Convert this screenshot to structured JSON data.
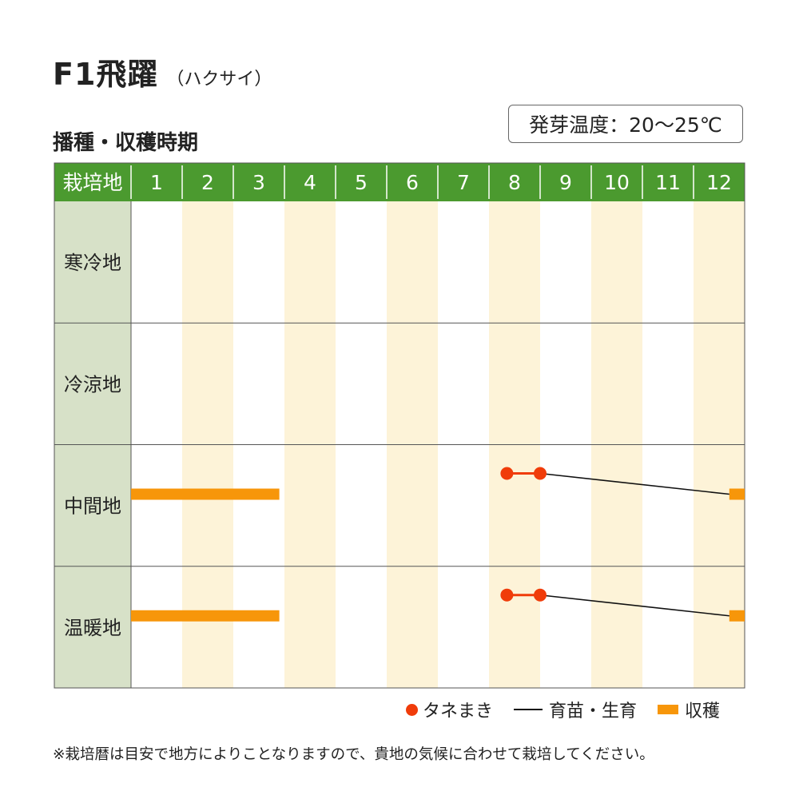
{
  "title": {
    "main": "F1飛躍",
    "sub": "（ハクサイ）"
  },
  "section_title": "播種・収穫時期",
  "germination": "発芽温度：20〜25℃",
  "legend": {
    "sowing": "タネまき",
    "growing": "育苗・生育",
    "harvest": "収穫"
  },
  "note": "※栽培暦は目安で地方によりことなりますので、貴地の気候に合わせて栽培してください。",
  "colors": {
    "header": "#4b9a2f",
    "rowLabel": "#d7e1c8",
    "stripe": "#fdf3d8",
    "sowing": "#f03c0a",
    "harvest": "#f7960a",
    "growing": "#111111"
  },
  "chart_data": {
    "type": "gantt",
    "header_label": "栽培地",
    "months": [
      "1",
      "2",
      "3",
      "4",
      "5",
      "6",
      "7",
      "8",
      "9",
      "10",
      "11",
      "12"
    ],
    "rows": [
      {
        "region": "寒冷地",
        "sowing": [],
        "growing": [],
        "harvest": []
      },
      {
        "region": "冷涼地",
        "sowing": [],
        "growing": [],
        "harvest": []
      },
      {
        "region": "中間地",
        "sowing": [
          8.35,
          9.0
        ],
        "growing": [
          [
            9.0,
            12.7
          ]
        ],
        "harvest": [
          [
            1.0,
            3.9
          ],
          [
            12.7,
            13.0
          ]
        ]
      },
      {
        "region": "温暖地",
        "sowing": [
          8.35,
          9.0
        ],
        "growing": [
          [
            9.0,
            12.7
          ]
        ],
        "harvest": [
          [
            1.0,
            3.9
          ],
          [
            12.7,
            13.0
          ]
        ]
      }
    ]
  }
}
